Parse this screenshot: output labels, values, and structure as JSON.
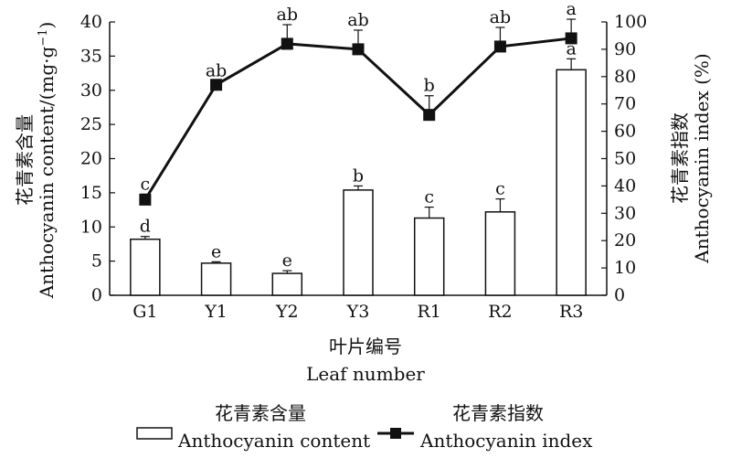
{
  "chart_data": {
    "type": "bar",
    "categories": [
      "G1",
      "Y1",
      "Y2",
      "Y3",
      "R1",
      "R2",
      "R3"
    ],
    "series": [
      {
        "name": "Anthocyanin content",
        "name_zh": "花青素含量",
        "type": "bar",
        "axis": "left",
        "values": [
          8.2,
          4.7,
          3.2,
          15.4,
          11.3,
          12.2,
          33.0
        ],
        "errors": [
          0.4,
          0.2,
          0.4,
          0.6,
          1.6,
          1.9,
          1.6
        ],
        "letters": [
          "d",
          "e",
          "e",
          "b",
          "c",
          "c",
          "a"
        ]
      },
      {
        "name": "Anthocyanin index",
        "name_zh": "花青素指数",
        "type": "line",
        "axis": "right",
        "values": [
          35,
          77,
          92,
          90,
          66,
          91,
          94
        ],
        "errors": [
          2,
          1.5,
          7,
          7,
          7,
          7,
          7
        ],
        "letters": [
          "c",
          "ab",
          "ab",
          "ab",
          "b",
          "ab",
          "a"
        ]
      }
    ],
    "xlabel_zh": "叶片编号",
    "xlabel": "Leaf number",
    "ylabel_zh": "花青素含量",
    "ylabel": "Anthocyanin content/(mg·g",
    "ylabel_sup": "−1",
    "ylabel_close": ")",
    "y2label_zh": "花青素指数",
    "y2label": "Anthocyanin index (%)",
    "ylim": [
      0,
      40
    ],
    "y2lim": [
      0,
      100
    ],
    "yticks": [
      "0",
      "5",
      "10",
      "15",
      "20",
      "25",
      "30",
      "35",
      "40"
    ],
    "y2ticks": [
      "0",
      "10",
      "20",
      "30",
      "40",
      "50",
      "60",
      "70",
      "80",
      "90",
      "100"
    ],
    "legend_position": "bottom",
    "grid": false
  }
}
